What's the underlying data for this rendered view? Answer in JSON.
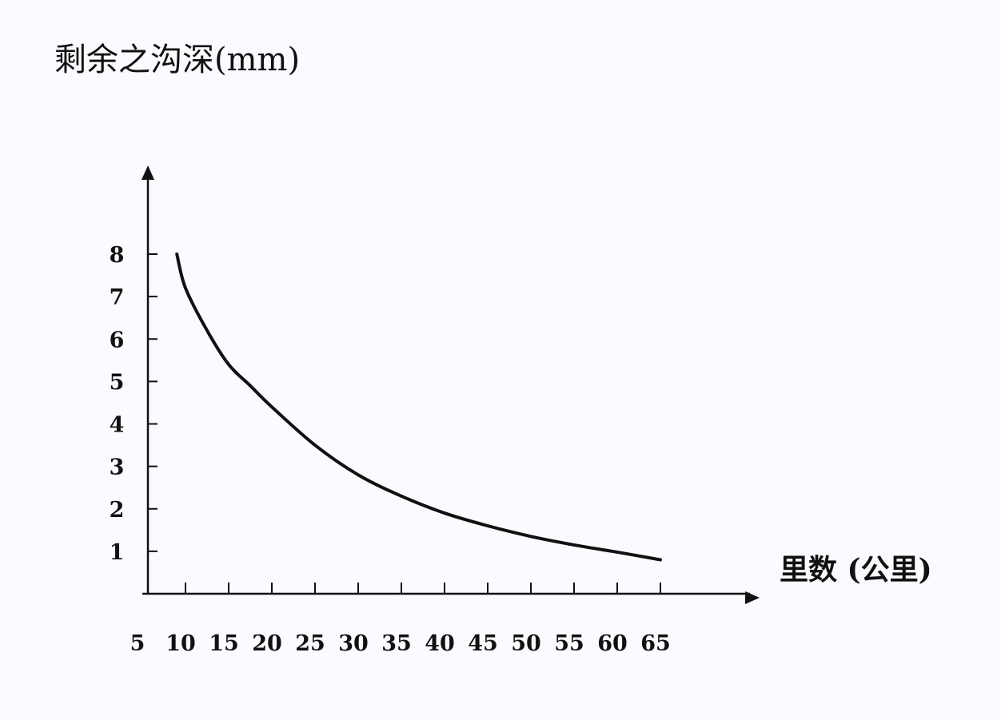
{
  "chart_data": {
    "type": "line",
    "title": "",
    "ylabel": "剩余之沟深(mm)",
    "xlabel": "里数 (公里)",
    "x_ticks": [
      "5",
      "10",
      "15",
      "20",
      "25",
      "30",
      "35",
      "40",
      "45",
      "50",
      "55",
      "60",
      "65"
    ],
    "y_ticks": [
      "1",
      "2",
      "3",
      "4",
      "5",
      "6",
      "7",
      "8"
    ],
    "xlim": [
      5,
      65
    ],
    "ylim": [
      0,
      8
    ],
    "grid": false,
    "series": [
      {
        "x": [
          9,
          10,
          12.5,
          15,
          17.5,
          20,
          25,
          30,
          35,
          40,
          45,
          50,
          55,
          60,
          65
        ],
        "values": [
          8.0,
          7.2,
          6.2,
          5.4,
          4.9,
          4.4,
          3.5,
          2.8,
          2.3,
          1.9,
          1.6,
          1.35,
          1.15,
          0.98,
          0.8
        ]
      }
    ],
    "colors": {
      "line": "#111111",
      "axis": "#111111"
    }
  }
}
